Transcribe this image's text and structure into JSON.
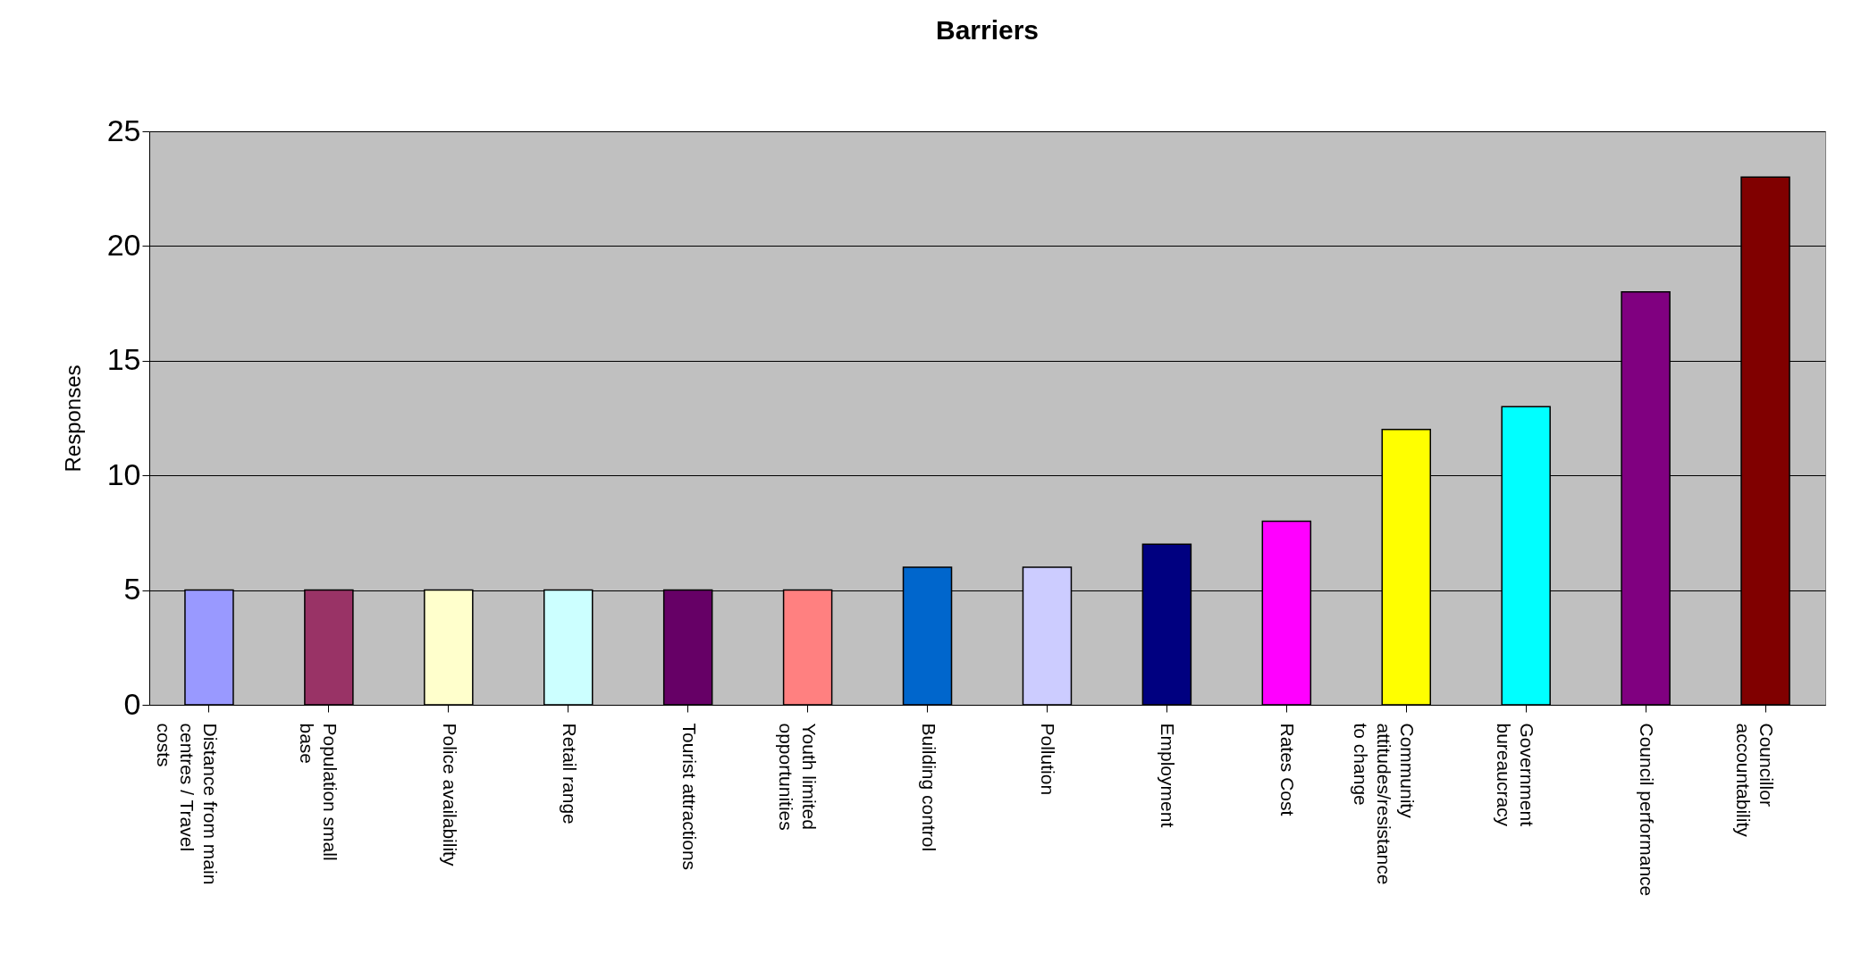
{
  "chart_data": {
    "type": "bar",
    "title": "Barriers",
    "ylabel": "Responses",
    "categories": [
      "Distance from main centres / Travel costs",
      "Population small base",
      "Police availability",
      "Retail range",
      "Tourist attractions",
      "Youth limited opportunities",
      "Building control",
      "Pollution",
      "Employment",
      "Rates Cost",
      "Community attitudes/resistance to change",
      "Government bureaucracy",
      "Council performance",
      "Councillor accountability"
    ],
    "values": [
      5,
      5,
      5,
      5,
      5,
      5,
      6,
      6,
      7,
      8,
      12,
      13,
      18,
      23
    ],
    "colors": [
      "#9999ff",
      "#993366",
      "#ffffcc",
      "#ccffff",
      "#660066",
      "#ff8080",
      "#0066cc",
      "#ccccff",
      "#000080",
      "#ff00ff",
      "#ffff00",
      "#00ffff",
      "#800080",
      "#800000"
    ],
    "ylim": [
      0,
      25
    ],
    "yticks": [
      0,
      5,
      10,
      15,
      20,
      25
    ],
    "grid": "y",
    "legend": false
  }
}
